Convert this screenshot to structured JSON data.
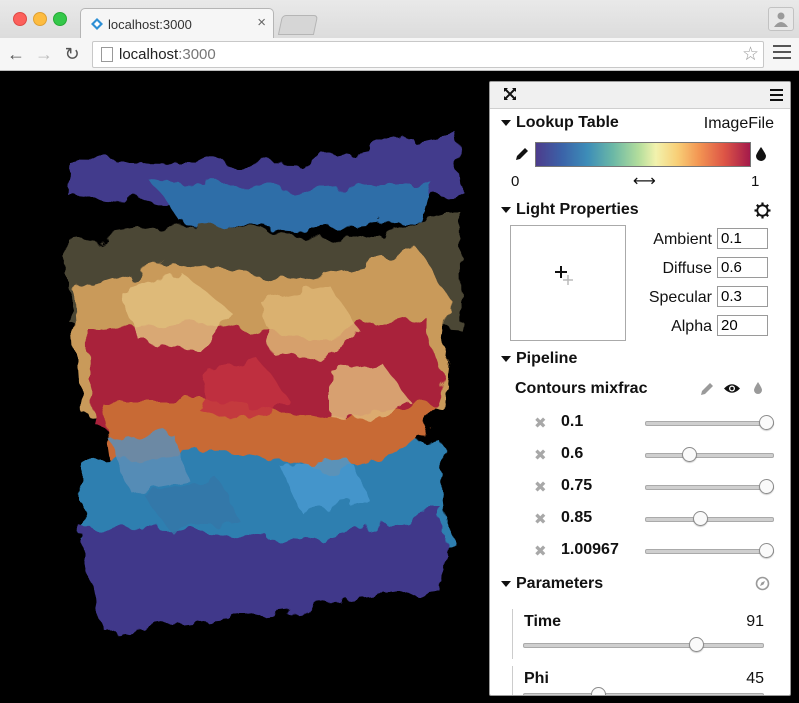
{
  "browser": {
    "tab_title": "localhost:3000",
    "url_host": "localhost",
    "url_port": ":3000",
    "tab_close": "×"
  },
  "panel": {
    "lookup_table": {
      "title": "Lookup Table",
      "preset": "ImageFile",
      "range_min": "0",
      "range_max": "1",
      "range_icon": "⟷"
    },
    "light": {
      "title": "Light Properties",
      "fields": [
        {
          "label": "Ambient",
          "value": "0.1"
        },
        {
          "label": "Diffuse",
          "value": "0.6"
        },
        {
          "label": "Specular",
          "value": "0.3"
        },
        {
          "label": "Alpha",
          "value": "20"
        }
      ]
    },
    "pipeline": {
      "title": "Pipeline",
      "item_name": "Contours mixfrac",
      "contours": [
        {
          "value": "0.1",
          "level": 1.0
        },
        {
          "value": "0.6",
          "level": 0.33
        },
        {
          "value": "0.75",
          "level": 1.0
        },
        {
          "value": "0.85",
          "level": 0.43
        },
        {
          "value": "1.00967",
          "level": 1.0
        }
      ]
    },
    "parameters": {
      "title": "Parameters",
      "items": [
        {
          "label": "Time",
          "value": "91",
          "level": 0.73
        },
        {
          "label": "Phi",
          "value": "45",
          "level": 0.3
        }
      ]
    }
  },
  "colors": {
    "accent": "#2d8fd5",
    "background": "#000000"
  }
}
